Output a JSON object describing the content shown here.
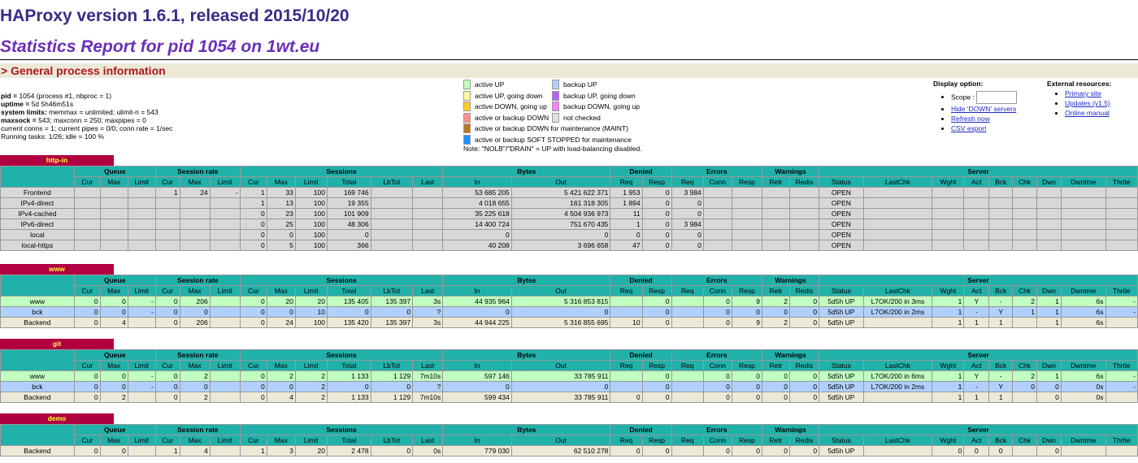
{
  "title": "HAProxy version 1.6.1, released 2015/10/20",
  "subtitle": "Statistics Report for pid 1054 on 1wt.eu",
  "section_title": "> General process information",
  "process_info": [
    {
      "key": "pid = ",
      "value": "1054 (process #1, nbproc = 1)"
    },
    {
      "key": "uptime = ",
      "value": "5d 5h46m51s"
    },
    {
      "key": "system limits:",
      "value": " memmax = unlimited; ulimit-n = 543"
    },
    {
      "key": "maxsock = ",
      "value": "543; maxconn = 250; maxpipes = 0"
    },
    {
      "key": "",
      "value": "current conns = 1; current pipes = 0/0; conn rate = 1/sec"
    },
    {
      "key": "",
      "value": "Running tasks: 1/26; idle = 100 %"
    }
  ],
  "legend": [
    {
      "label": "active UP",
      "color": "#c0ffc0"
    },
    {
      "label": "active UP, going down",
      "color": "#ffffa0"
    },
    {
      "label": "active DOWN, going up",
      "color": "#ffd020"
    },
    {
      "label": "active or backup DOWN",
      "color": "#ff9090"
    },
    {
      "label": "active or backup DOWN for maintenance (MAINT)",
      "color": "#c07820"
    },
    {
      "label": "active or backup SOFT STOPPED for maintenance",
      "color": "#2090ff"
    },
    {
      "label": "backup UP",
      "color": "#b0d0ff"
    },
    {
      "label": "backup UP, going down",
      "color": "#c060ff"
    },
    {
      "label": "backup DOWN, going up",
      "color": "#ff80ff"
    },
    {
      "label": "not checked",
      "color": "#e0e0e0"
    }
  ],
  "legend_note": "Note: \"NOLB\"/\"DRAIN\" = UP with load-balancing disabled.",
  "display_option": {
    "heading": "Display option:",
    "scope_label": "Scope :",
    "scope_value": "",
    "links": [
      "Hide 'DOWN' servers",
      "Refresh now",
      "CSV export"
    ]
  },
  "external": {
    "heading": "External resources:",
    "links": [
      "Primary site",
      "Updates (v1.5)",
      "Online manual"
    ]
  },
  "group_headers": [
    "Queue",
    "Session rate",
    "Sessions",
    "Bytes",
    "Denied",
    "Errors",
    "Warnings",
    "Server"
  ],
  "col_headers": [
    "Cur",
    "Max",
    "Limit",
    "Cur",
    "Max",
    "Limit",
    "Cur",
    "Max",
    "Limit",
    "Total",
    "LbTot",
    "Last",
    "In",
    "Out",
    "Req",
    "Resp",
    "Req",
    "Conn",
    "Resp",
    "Retr",
    "Redis",
    "Status",
    "LastChk",
    "Wght",
    "Act",
    "Bck",
    "Chk",
    "Dwn",
    "Dwntme",
    "Thrtle"
  ],
  "proxies": [
    {
      "name": "http-in",
      "rows": [
        {
          "type": "fe",
          "name": "Frontend",
          "cells": [
            "",
            "",
            "",
            "1",
            "24",
            "-",
            "1",
            "33",
            "100",
            "169 746",
            "",
            "",
            "53 685 205",
            "5 421 622 371",
            "1 953",
            "0",
            "3 984",
            "",
            "",
            "",
            "",
            "OPEN",
            "",
            "",
            "",
            "",
            "",
            "",
            "",
            ""
          ]
        },
        {
          "type": "fe",
          "name": "IPv4-direct",
          "cells": [
            "",
            "",
            "",
            "",
            "",
            "",
            "1",
            "13",
            "100",
            "19 355",
            "",
            "",
            "4 018 655",
            "161 318 305",
            "1 894",
            "0",
            "0",
            "",
            "",
            "",
            "",
            "OPEN",
            "",
            "",
            "",
            "",
            "",
            "",
            "",
            ""
          ]
        },
        {
          "type": "fe",
          "name": "IPv4-cached",
          "cells": [
            "",
            "",
            "",
            "",
            "",
            "",
            "0",
            "23",
            "100",
            "101 909",
            "",
            "",
            "35 225 618",
            "4 504 936 973",
            "11",
            "0",
            "0",
            "",
            "",
            "",
            "",
            "OPEN",
            "",
            "",
            "",
            "",
            "",
            "",
            "",
            ""
          ]
        },
        {
          "type": "fe",
          "name": "IPv6-direct",
          "cells": [
            "",
            "",
            "",
            "",
            "",
            "",
            "0",
            "25",
            "100",
            "48 306",
            "",
            "",
            "14 400 724",
            "751 670 435",
            "1",
            "0",
            "3 984",
            "",
            "",
            "",
            "",
            "OPEN",
            "",
            "",
            "",
            "",
            "",
            "",
            "",
            ""
          ]
        },
        {
          "type": "fe",
          "name": "local",
          "cells": [
            "",
            "",
            "",
            "",
            "",
            "",
            "0",
            "0",
            "100",
            "0",
            "",
            "",
            "0",
            "0",
            "0",
            "0",
            "0",
            "",
            "",
            "",
            "",
            "OPEN",
            "",
            "",
            "",
            "",
            "",
            "",
            "",
            ""
          ]
        },
        {
          "type": "fe",
          "name": "local-https",
          "cells": [
            "",
            "",
            "",
            "",
            "",
            "",
            "0",
            "5",
            "100",
            "366",
            "",
            "",
            "40 208",
            "3 696 658",
            "47",
            "0",
            "0",
            "",
            "",
            "",
            "",
            "OPEN",
            "",
            "",
            "",
            "",
            "",
            "",
            "",
            ""
          ]
        }
      ]
    },
    {
      "name": "www",
      "rows": [
        {
          "type": "up",
          "name": "www",
          "cells": [
            "0",
            "0",
            "-",
            "0",
            "206",
            "",
            "0",
            "20",
            "20",
            "135 405",
            "135 397",
            "3s",
            "44 935 964",
            "5 316 853 815",
            "",
            "0",
            "",
            "0",
            "9",
            "2",
            "0",
            "5d5h UP",
            "L7OK/200 in 3ms",
            "1",
            "Y",
            "-",
            "2",
            "1",
            "6s",
            "-"
          ]
        },
        {
          "type": "bk",
          "name": "bck",
          "cells": [
            "0",
            "0",
            "-",
            "0",
            "0",
            "",
            "0",
            "0",
            "10",
            "0",
            "0",
            "?",
            "0",
            "0",
            "",
            "0",
            "",
            "0",
            "0",
            "0",
            "0",
            "5d5h UP",
            "L7OK/200 in 2ms",
            "1",
            "-",
            "Y",
            "1",
            "1",
            "6s",
            "-"
          ]
        },
        {
          "type": "be",
          "name": "Backend",
          "cells": [
            "0",
            "4",
            "",
            "0",
            "206",
            "",
            "0",
            "24",
            "100",
            "135 420",
            "135 397",
            "3s",
            "44 944 225",
            "5 316 855 695",
            "10",
            "0",
            "",
            "0",
            "9",
            "2",
            "0",
            "5d5h UP",
            "",
            "1",
            "1",
            "1",
            "",
            "1",
            "6s",
            ""
          ]
        }
      ]
    },
    {
      "name": "git",
      "rows": [
        {
          "type": "up",
          "name": "www",
          "cells": [
            "0",
            "0",
            "-",
            "0",
            "2",
            "",
            "0",
            "2",
            "2",
            "1 133",
            "1 129",
            "7m10s",
            "597 146",
            "33 785 911",
            "",
            "0",
            "",
            "0",
            "0",
            "0",
            "0",
            "5d5h UP",
            "L7OK/200 in 6ms",
            "1",
            "Y",
            "-",
            "2",
            "1",
            "6s",
            "-"
          ]
        },
        {
          "type": "bk",
          "name": "bck",
          "cells": [
            "0",
            "0",
            "-",
            "0",
            "0",
            "",
            "0",
            "0",
            "2",
            "0",
            "0",
            "?",
            "0",
            "0",
            "",
            "0",
            "",
            "0",
            "0",
            "0",
            "0",
            "5d5h UP",
            "L7OK/200 in 2ms",
            "1",
            "-",
            "Y",
            "0",
            "0",
            "0s",
            "-"
          ]
        },
        {
          "type": "be",
          "name": "Backend",
          "cells": [
            "0",
            "2",
            "",
            "0",
            "2",
            "",
            "0",
            "4",
            "2",
            "1 133",
            "1 129",
            "7m10s",
            "599 434",
            "33 785 911",
            "0",
            "0",
            "",
            "0",
            "0",
            "0",
            "0",
            "5d5h UP",
            "",
            "1",
            "1",
            "1",
            "",
            "0",
            "0s",
            ""
          ]
        }
      ]
    },
    {
      "name": "demo",
      "rows": [
        {
          "type": "be",
          "name": "Backend",
          "cells": [
            "0",
            "0",
            "",
            "1",
            "4",
            "",
            "1",
            "3",
            "20",
            "2 478",
            "0",
            "0s",
            "779 030",
            "62 510 278",
            "0",
            "0",
            "",
            "0",
            "0",
            "0",
            "0",
            "5d5h UP",
            "",
            "0",
            "0",
            "0",
            "",
            "0",
            "",
            ""
          ]
        }
      ]
    }
  ]
}
